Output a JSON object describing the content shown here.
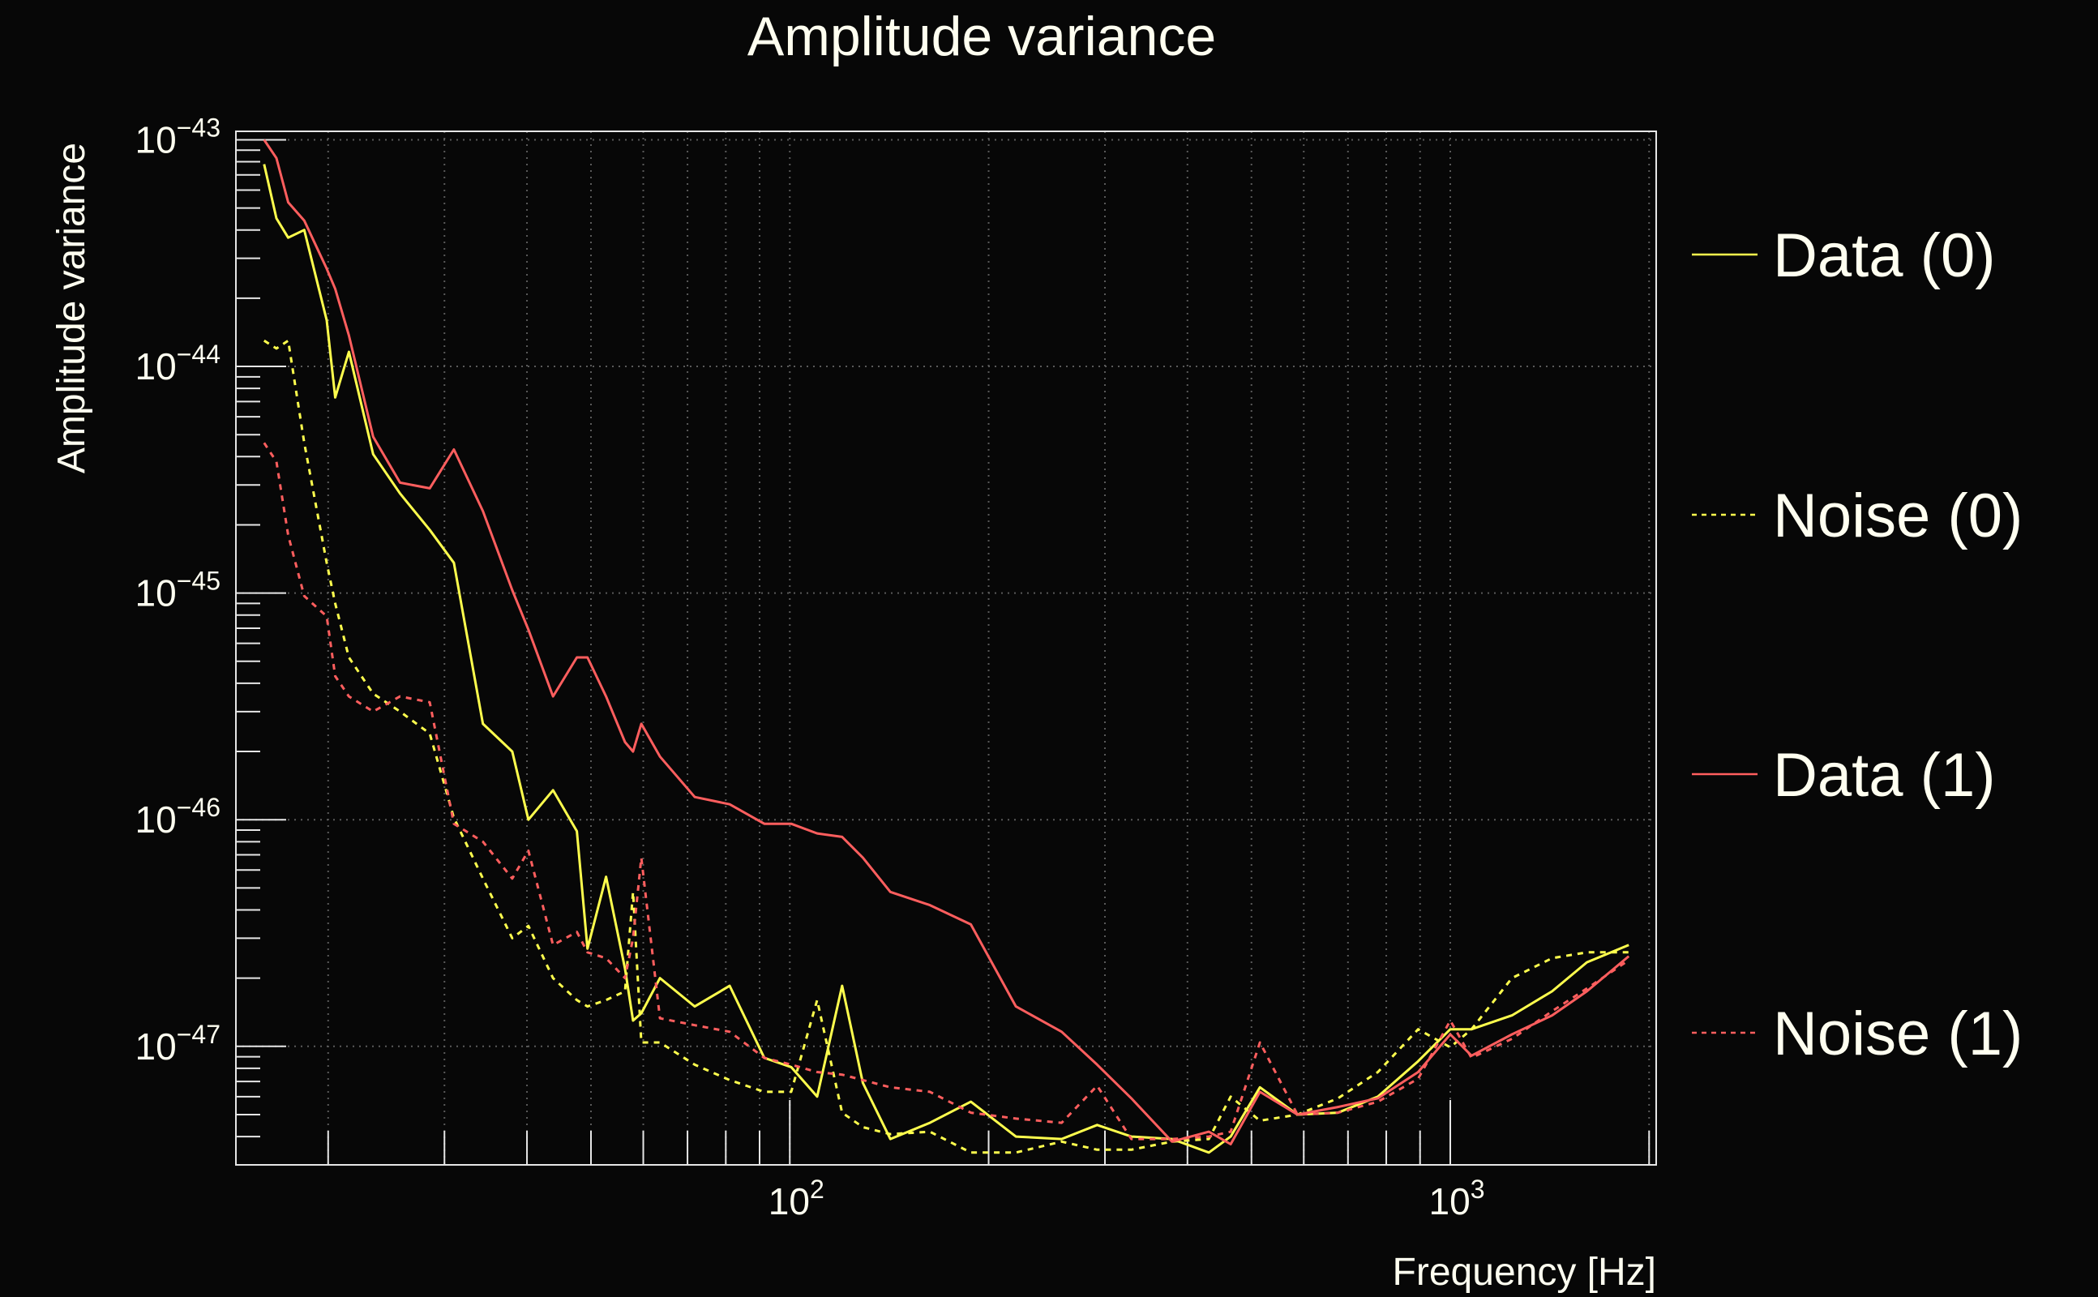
{
  "chart_data": {
    "type": "line",
    "title": "Amplitude variance",
    "xlabel": "Frequency [Hz]",
    "ylabel": "Amplitude variance",
    "xscale": "log",
    "yscale": "log",
    "xlim": [
      14.5,
      2050
    ],
    "ylim": [
      3e-48,
      1.09e-43
    ],
    "grid": true,
    "legend_position": "right-outside",
    "x_ticks": [
      {
        "value": 100,
        "base": "10",
        "exp": "2"
      },
      {
        "value": 1000,
        "base": "10",
        "exp": "3"
      }
    ],
    "y_ticks": [
      {
        "value": 1e-43,
        "base": "10",
        "exp": "−43"
      },
      {
        "value": 1e-44,
        "base": "10",
        "exp": "−44"
      },
      {
        "value": 1e-45,
        "base": "10",
        "exp": "−45"
      },
      {
        "value": 1e-46,
        "base": "10",
        "exp": "−46"
      },
      {
        "value": 1e-47,
        "base": "10",
        "exp": "−47"
      }
    ],
    "x": [
      16.0,
      16.7,
      17.4,
      18.4,
      19.9,
      20.5,
      21.5,
      23.4,
      25.7,
      28.5,
      31.0,
      34.3,
      38.0,
      40.2,
      43.8,
      47.6,
      49.4,
      52.7,
      56.3,
      57.9,
      59.6,
      63.6,
      71.8,
      81.1,
      91.5,
      100.5,
      110,
      120,
      129,
      142,
      163,
      188,
      220,
      258,
      292,
      329,
      379,
      431,
      465,
      515,
      587,
      676,
      777,
      894,
      1000,
      1077,
      1240,
      1426,
      1610,
      1863
    ],
    "series": [
      {
        "name": "Data (0)",
        "color": "#ffff4d",
        "style": "solid",
        "values": [
          7.8e-44,
          4.5e-44,
          3.7e-44,
          4e-44,
          1.6e-44,
          7.3e-45,
          1.16e-44,
          4.1e-45,
          2.75e-45,
          1.9e-45,
          1.36e-45,
          2.65e-46,
          2e-46,
          1e-46,
          1.35e-46,
          8.9e-47,
          2.7e-47,
          5.6e-47,
          2.2e-47,
          1.3e-47,
          1.4e-47,
          2e-47,
          1.5e-47,
          1.85e-47,
          8.9e-48,
          8.1e-48,
          6e-48,
          1.85e-47,
          6.9e-48,
          3.9e-48,
          4.6e-48,
          5.7e-48,
          4e-48,
          3.9e-48,
          4.5e-48,
          4e-48,
          3.9e-48,
          3.4e-48,
          4e-48,
          6.6e-48,
          5e-48,
          5.1e-48,
          6e-48,
          8.6e-48,
          1.19e-47,
          1.19e-47,
          1.37e-47,
          1.75e-47,
          2.35e-47,
          2.8e-47
        ]
      },
      {
        "name": "Noise (0)",
        "color": "#ffff4d",
        "style": "dashed",
        "values": [
          1.3e-44,
          1.2e-44,
          1.3e-44,
          4.6e-45,
          1.36e-45,
          9e-46,
          5.2e-46,
          3.6e-46,
          3e-46,
          2.4e-46,
          1.02e-46,
          5.5e-47,
          3e-47,
          3.4e-47,
          2e-47,
          1.6e-47,
          1.5e-47,
          1.6e-47,
          1.75e-47,
          4.8e-47,
          1.04e-47,
          1.04e-47,
          8.3e-48,
          7.1e-48,
          6.3e-48,
          6.3e-48,
          1.6e-47,
          5.1e-48,
          4.4e-48,
          4.1e-48,
          4.2e-48,
          3.4e-48,
          3.4e-48,
          3.8e-48,
          3.5e-48,
          3.5e-48,
          3.8e-48,
          3.9e-48,
          6e-48,
          4.7e-48,
          5e-48,
          5.9e-48,
          7.7e-48,
          1.19e-47,
          9.9e-48,
          1.19e-47,
          2e-47,
          2.45e-47,
          2.6e-47,
          2.6e-47
        ]
      },
      {
        "name": "Data (1)",
        "color": "#ff5e5e",
        "style": "solid",
        "values": [
          1e-43,
          8.3e-44,
          5.3e-44,
          4.4e-44,
          2.7e-44,
          2.2e-44,
          1.37e-44,
          4.9e-45,
          3.07e-45,
          2.9e-45,
          4.3e-45,
          2.3e-45,
          1.03e-45,
          6.9e-46,
          3.5e-46,
          5.2e-46,
          5.2e-46,
          3.5e-46,
          2.2e-46,
          2e-46,
          2.65e-46,
          1.9e-46,
          1.26e-46,
          1.17e-46,
          9.6e-47,
          9.6e-47,
          8.7e-47,
          8.4e-47,
          6.8e-47,
          4.8e-47,
          4.2e-47,
          3.45e-47,
          1.5e-47,
          1.16e-47,
          8.3e-48,
          5.9e-48,
          3.8e-48,
          4.2e-48,
          3.7e-48,
          6.3e-48,
          5e-48,
          5.4e-48,
          5.9e-48,
          7.7e-48,
          1.13e-47,
          9.1e-48,
          1.13e-47,
          1.37e-47,
          1.75e-47,
          2.5e-47
        ]
      },
      {
        "name": "Noise (1)",
        "color": "#ff5e5e",
        "style": "dashed",
        "values": [
          4.6e-45,
          3.8e-45,
          1.8e-45,
          9.7e-46,
          7.9e-46,
          4.3e-46,
          3.5e-46,
          3e-46,
          3.5e-46,
          3.3e-46,
          9.6e-47,
          8e-47,
          5.5e-47,
          7.3e-47,
          2.8e-47,
          3.2e-47,
          2.6e-47,
          2.45e-47,
          2e-47,
          3e-47,
          6.8e-47,
          1.33e-47,
          1.24e-47,
          1.16e-47,
          8.9e-48,
          8.3e-48,
          7.7e-48,
          7.5e-48,
          7.1e-48,
          6.6e-48,
          6.3e-48,
          5.1e-48,
          4.8e-48,
          4.6e-48,
          6.7e-48,
          3.9e-48,
          3.9e-48,
          4e-48,
          4.2e-48,
          1.04e-47,
          5e-48,
          5.1e-48,
          5.7e-48,
          7.2e-48,
          1.3e-47,
          8.9e-48,
          1.08e-47,
          1.43e-47,
          1.8e-47,
          2.4e-47
        ]
      }
    ]
  },
  "colors": {
    "background": "#070707",
    "text": "#fffff0",
    "axis": "#e6e6e6",
    "grid": "#5a5a5a"
  }
}
